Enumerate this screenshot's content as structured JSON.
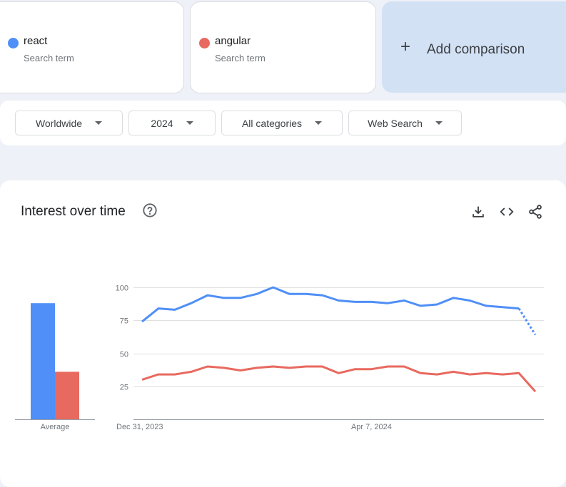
{
  "terms": [
    {
      "name": "react",
      "type": "Search term",
      "color": "#4f8ff7"
    },
    {
      "name": "angular",
      "type": "Search term",
      "color": "#e8695f"
    }
  ],
  "add_comparison": {
    "label": "Add comparison",
    "icon": "plus-icon"
  },
  "filters": {
    "geo": "Worldwide",
    "time": "2024",
    "category": "All categories",
    "property": "Web Search"
  },
  "panel": {
    "title": "Interest over time",
    "icons": [
      "help-icon",
      "download-icon",
      "embed-code-icon",
      "share-icon"
    ]
  },
  "chart_data": [
    {
      "type": "bar",
      "xlabel": "Average",
      "series": [
        {
          "name": "react",
          "value": 88,
          "color": "#4f8ff7"
        },
        {
          "name": "angular",
          "value": 36,
          "color": "#e8695f"
        }
      ],
      "ylim": [
        0,
        100
      ]
    },
    {
      "type": "line",
      "ylim": [
        0,
        100
      ],
      "yticks": [
        25,
        50,
        75,
        100
      ],
      "grid": true,
      "xtick_labels": [
        {
          "label": "Dec 31, 2023",
          "index": 0
        },
        {
          "label": "Apr 7, 2024",
          "index": 14
        }
      ],
      "series": [
        {
          "name": "react",
          "color": "#4f8ff7",
          "values": [
            74,
            84,
            83,
            88,
            94,
            92,
            92,
            95,
            100,
            95,
            95,
            94,
            90,
            89,
            89,
            88,
            90,
            86,
            87,
            92,
            90,
            86,
            85,
            84,
            64
          ],
          "partial_last": true
        },
        {
          "name": "angular",
          "color": "#e8695f",
          "values": [
            30,
            34,
            34,
            36,
            40,
            39,
            37,
            39,
            40,
            39,
            40,
            40,
            35,
            38,
            38,
            40,
            40,
            35,
            34,
            36,
            34,
            35,
            34,
            35,
            21
          ],
          "partial_last": false
        }
      ]
    }
  ]
}
